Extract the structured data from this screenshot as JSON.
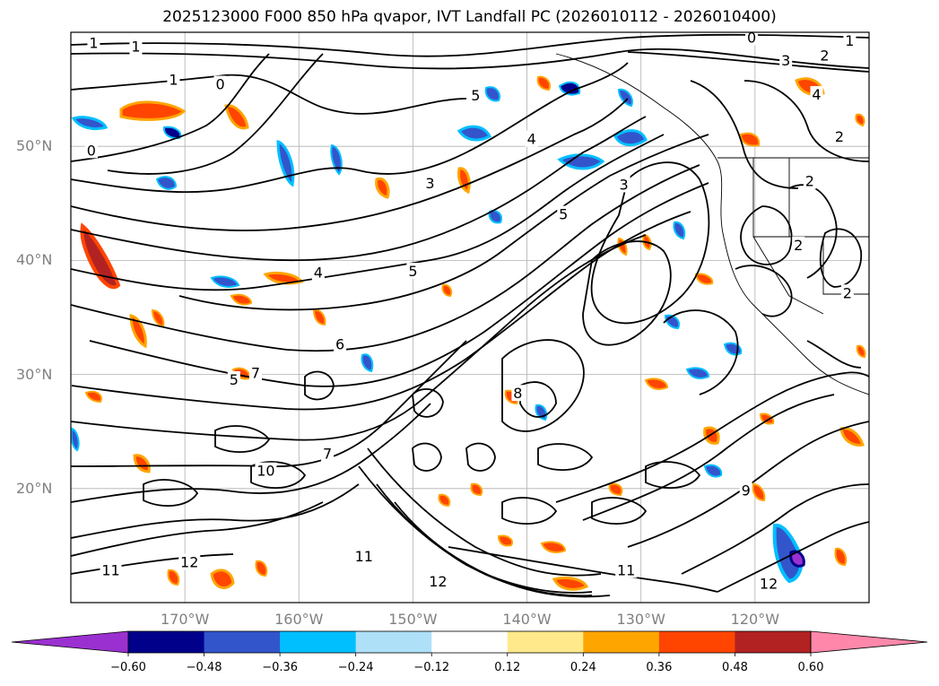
{
  "title": "2025123000 F000 850 hPa qvapor, IVT Landfall PC (2026010112 - 2026010400)",
  "chart_data": {
    "type": "heatmap",
    "title": "2025123000 F000 850 hPa qvapor, IVT Landfall PC (2026010112 - 2026010400)",
    "map_projection": "cylindrical",
    "lon_range": [
      -180,
      -110
    ],
    "lat_range": [
      10,
      60
    ],
    "lat_ticks": [
      "50°N",
      "40°N",
      "30°N",
      "20°N"
    ],
    "lat_tick_values": [
      50,
      40,
      30,
      20
    ],
    "lon_ticks": [
      "170°W",
      "160°W",
      "150°W",
      "140°W",
      "130°W",
      "120°W"
    ],
    "lon_tick_values": [
      -170,
      -160,
      -150,
      -140,
      -130,
      -120
    ],
    "grid": true,
    "colorbar": {
      "orientation": "horizontal",
      "extend": "both",
      "levels": [
        -0.6,
        -0.48,
        -0.36,
        -0.24,
        -0.12,
        0.12,
        0.24,
        0.36,
        0.48,
        0.6
      ],
      "tick_labels": [
        "−0.60",
        "−0.48",
        "−0.36",
        "−0.24",
        "−0.12",
        "0.12",
        "0.24",
        "0.36",
        "0.48",
        "0.60"
      ],
      "colors": [
        "#9b30d0",
        "#00008b",
        "#3355cc",
        "#00bfff",
        "#aee0f8",
        "#ffffff",
        "#ffe98a",
        "#ffa500",
        "#ff4500",
        "#b22222",
        "#ff88aa"
      ]
    },
    "contour_labels": [
      {
        "text": "1",
        "lon": -178,
        "lat": 59
      },
      {
        "text": "1",
        "lon": -174.3,
        "lat": 58.7
      },
      {
        "text": "0",
        "lon": -120.3,
        "lat": 59.5
      },
      {
        "text": "1",
        "lon": -111.7,
        "lat": 59.2
      },
      {
        "text": "2",
        "lon": -113.9,
        "lat": 57.9
      },
      {
        "text": "3",
        "lon": -117.3,
        "lat": 57.5
      },
      {
        "text": "1",
        "lon": -171,
        "lat": 55.8
      },
      {
        "text": "0",
        "lon": -166.9,
        "lat": 55.4
      },
      {
        "text": "4",
        "lon": -114.6,
        "lat": 54.5
      },
      {
        "text": "5",
        "lon": -144.5,
        "lat": 54.4
      },
      {
        "text": "2",
        "lon": -112.6,
        "lat": 50.8
      },
      {
        "text": "4",
        "lon": -139.6,
        "lat": 50.6
      },
      {
        "text": "0",
        "lon": -178.2,
        "lat": 49.6
      },
      {
        "text": "3",
        "lon": -148.5,
        "lat": 46.7
      },
      {
        "text": "3",
        "lon": -131.5,
        "lat": 46.6
      },
      {
        "text": "2",
        "lon": -115.2,
        "lat": 46.9
      },
      {
        "text": "5",
        "lon": -136.8,
        "lat": 44.0
      },
      {
        "text": "2",
        "lon": -116.2,
        "lat": 41.3
      },
      {
        "text": "5",
        "lon": -150,
        "lat": 39.0
      },
      {
        "text": "4",
        "lon": -158.3,
        "lat": 38.9
      },
      {
        "text": "2",
        "lon": -111.9,
        "lat": 37.1
      },
      {
        "text": "6",
        "lon": -156.4,
        "lat": 32.6
      },
      {
        "text": "5",
        "lon": -165.7,
        "lat": 29.5
      },
      {
        "text": "7",
        "lon": -163.8,
        "lat": 30.1
      },
      {
        "text": "8",
        "lon": -140.8,
        "lat": 28.3
      },
      {
        "text": "9",
        "lon": -120.8,
        "lat": 19.8
      },
      {
        "text": "10",
        "lon": -162.9,
        "lat": 21.5
      },
      {
        "text": "7",
        "lon": -157.5,
        "lat": 23.0
      },
      {
        "text": "11",
        "lon": -154.3,
        "lat": 14.0
      },
      {
        "text": "12",
        "lon": -169.6,
        "lat": 13.5
      },
      {
        "text": "12",
        "lon": -147.8,
        "lat": 11.8
      },
      {
        "text": "11",
        "lon": -131.3,
        "lat": 12.8
      },
      {
        "text": "12",
        "lon": -118.8,
        "lat": 11.6
      },
      {
        "text": "11",
        "lon": -176.5,
        "lat": 12.8
      }
    ]
  }
}
